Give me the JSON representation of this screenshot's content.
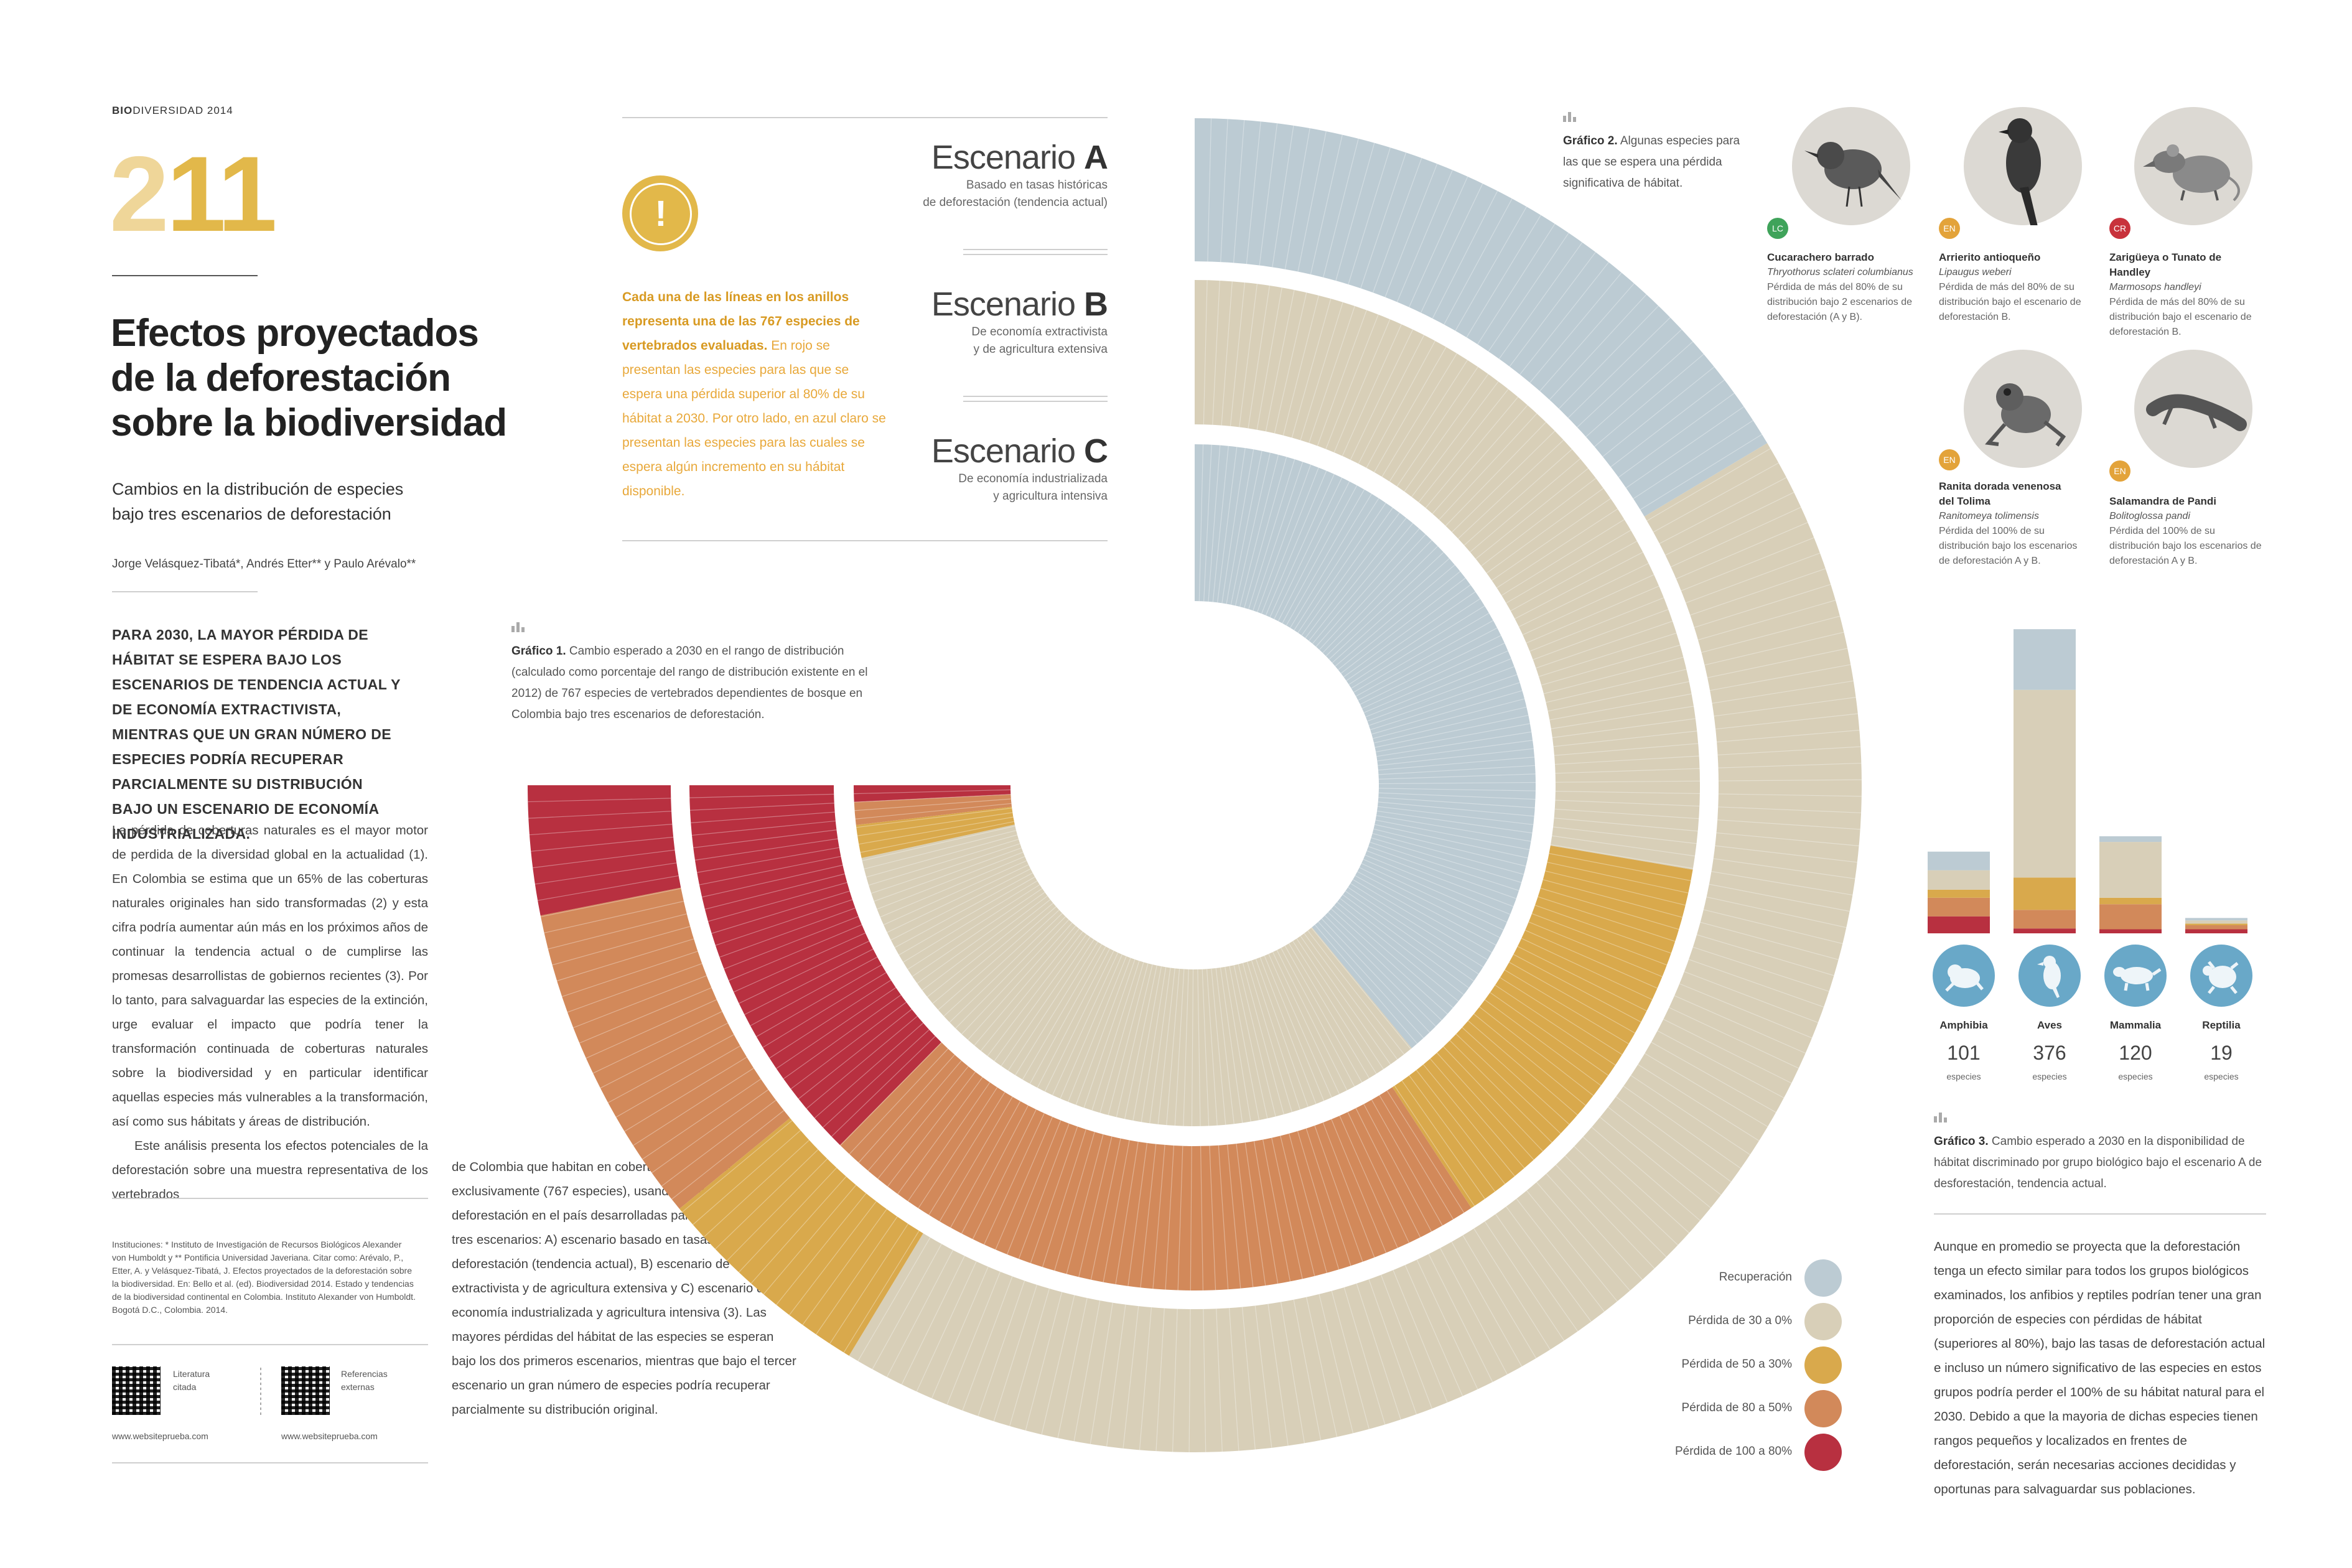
{
  "header": {
    "series_bold": "BIO",
    "series_rest": "DIVERSIDAD 2014",
    "page_number_a": "2",
    "page_number_b": "11"
  },
  "article": {
    "title_l1": "Efectos proyectados",
    "title_l2": "de la deforestación",
    "title_l3": "sobre la biodiversidad",
    "subtitle_l1": "Cambios en la distribución de especies",
    "subtitle_l2": "bajo tres escenarios de deforestación",
    "authors": "Jorge Velásquez-Tibatá*, Andrés Etter** y Paulo Arévalo**",
    "lead": "PARA 2030, LA MAYOR PÉRDIDA DE HÁBITAT SE ESPERA BAJO LOS ESCENARIOS DE TENDENCIA ACTUAL Y DE ECONOMÍA EXTRACTIVISTA, MIENTRAS QUE UN GRAN NÚMERO DE ESPECIES PODRÍA RECUPERAR PARCIALMENTE SU DISTRIBUCIÓN BAJO UN ESCENARIO DE ECONOMÍA INDUSTRIALIZADA.",
    "body_p1": "La pérdida de coberturas naturales es el mayor motor de perdida de la diversidad global en la actualidad (1). En Colombia se estima que un 65% de las coberturas naturales originales han sido transformadas (2) y esta cifra podría aumentar aún más en los próximos años de continuar la tendencia actual o de cumplirse las promesas desarrollistas de gobiernos recientes (3). Por lo tanto, para salvaguardar las especies de la extinción, urge evaluar el impacto que podría tener la transformación continuada de coberturas naturales sobre la biodiversidad y en particular identificar aquellas especies más vulnerables a la transformación, así como sus hábitats y áreas de distribución.",
    "body_p2": "Este análisis presenta los efectos potenciales de la deforestación sobre una muestra representativa de los vertebrados",
    "body_cont": "de Colombia que habitan en coberturas boscosas exclusivamente (767 especies), usando proyecciones de deforestación en el país desarrolladas para el año 2030, bajo tres escenarios: A) escenario basado en tasas históricas de deforestación (tendencia actual), B) escenario de economía extractivista y de agricultura extensiva y C) escenario de economía industrializada y agricultura intensiva (3). Las mayores pérdidas del hábitat de las especies se esperan bajo los dos primeros escenarios, mientras que bajo el tercer escenario un gran número de especies podría recuperar parcialmente su distribución original.",
    "institutions": "Instituciones: * Instituto de Investigación de Recursos Biológicos Alexander von Humboldt y ** Pontificia Universidad Javeriana. Citar como: Arévalo, P., Etter, A. y Velásquez-Tibatá, J. Efectos proyectados de la deforestación sobre la biodiversidad. En: Bello et al. (ed). Biodiversidad 2014. Estado y tendencias de la biodiversidad continental en Colombia. Instituto Alexander von Humboldt. Bogotá D.C., Colombia. 2014.",
    "qr1_label_l1": "Literatura",
    "qr1_label_l2": "citada",
    "qr2_label_l1": "Referencias",
    "qr2_label_l2": "externas",
    "qr1_url": "www.websiteprueba.com",
    "qr2_url": "www.websiteprueba.com"
  },
  "scenarios": {
    "word": "Escenario",
    "a_letter": "A",
    "a_desc_l1": "Basado en tasas históricas",
    "a_desc_l2": "de deforestación (tendencia actual)",
    "b_letter": "B",
    "b_desc_l1": "De economía extractivista",
    "b_desc_l2": "y de agricultura extensiva",
    "c_letter": "C",
    "c_desc_l1": "De economía industrializada",
    "c_desc_l2": "y agricultura intensiva"
  },
  "alert": {
    "symbol": "!",
    "bold": "Cada una de las líneas en los anillos representa una de las 767 especies de vertebrados evaluadas.",
    "rest": " En rojo se presentan las especies para las que se espera una pérdida superior al 80% de su hábitat a 2030. Por otro lado, en azul claro se presentan las especies para las cuales se espera algún incremento en su hábitat disponible."
  },
  "grafico1": {
    "label": "Gráfico 1.",
    "text": " Cambio esperado a 2030 en el rango de distribución (calculado como porcentaje del rango de distribución existente en el 2012) de 767 especies de vertebrados dependientes de bosque en Colombia bajo tres escenarios de deforestación."
  },
  "grafico2": {
    "label": "Gráfico 2.",
    "text": " Algunas especies para las que se espera una pérdida significativa de hábitat."
  },
  "grafico3": {
    "label": "Gráfico 3.",
    "text": " Cambio esperado a 2030 en la disponibilidad de hábitat discriminado por grupo biológico bajo el escenario A de desforestación, tendencia actual.",
    "body": "Aunque en promedio se proyecta que la deforestación tenga un efecto similar para todos los grupos biológicos examinados, los anfibios y reptiles podrían tener una gran proporción de especies con pérdidas de hábitat (superiores al 80%), bajo las tasas de deforestación actual e incluso un número significativo de las especies en estos grupos podría perder el 100% de su hábitat natural para el 2030. Debido a que la mayoria de dichas especies tienen rangos pequeños y localizados en frentes de deforestación, serán necesarias acciones decididas y oportunas para salvaguardar sus poblaciones."
  },
  "species": [
    {
      "status": "LC",
      "status_color": "#3fa35a",
      "name": "Cucarachero barrado",
      "sci": "Thryothorus sclateri columbianus",
      "desc": "Pérdida de más del 80% de su distribución bajo 2 escenarios de deforestación (A y B).",
      "icon": "wren-icon"
    },
    {
      "status": "EN",
      "status_color": "#e3a33a",
      "name": "Arrierito antioqueño",
      "sci": "Lipaugus weberi",
      "desc": "Pérdida de más del 80% de su distribución bajo el escenario de deforestación B.",
      "icon": "piha-icon"
    },
    {
      "status": "CR",
      "status_color": "#c8323c",
      "name": "Zarigüeya o Tunato de Handley",
      "sci": "Marmosops handleyi",
      "desc": "Pérdida de más del 80% de su distribución bajo el escenario de deforestación B.",
      "icon": "opossum-icon"
    },
    {
      "status": "EN",
      "status_color": "#e3a33a",
      "name_l1": "Ranita dorada venenosa",
      "name_l2": "del Tolima",
      "sci": "Ranitomeya tolimensis",
      "desc": "Pérdida del 100% de su distribución bajo los escenarios de deforestación A y B.",
      "icon": "frog-icon"
    },
    {
      "status": "EN",
      "status_color": "#e3a33a",
      "name": "Salamandra de Pandi",
      "sci": "Bolitoglossa pandi",
      "desc": "Pérdida del 100% de su distribución bajo los escenarios de deforestación A y B.",
      "icon": "salamander-icon"
    }
  ],
  "groups": [
    {
      "name": "Amphibia",
      "count": "101",
      "unit": "especies",
      "icon": "frog-icon"
    },
    {
      "name": "Aves",
      "count": "376",
      "unit": "especies",
      "icon": "bird-icon"
    },
    {
      "name": "Mammalia",
      "count": "120",
      "unit": "especies",
      "icon": "mammal-icon"
    },
    {
      "name": "Reptilia",
      "count": "19",
      "unit": "especies",
      "icon": "turtle-icon"
    }
  ],
  "legend": [
    {
      "label": "Recuperación",
      "color": "#bccbd3"
    },
    {
      "label": "Pérdida de 30 a 0%",
      "color": "#d8cfb8"
    },
    {
      "label": "Pérdida de 50 a 30%",
      "color": "#d9a94c"
    },
    {
      "label": "Pérdida de 80 a 50%",
      "color": "#d2895a"
    },
    {
      "label": "Pérdida de 100 a 80%",
      "color": "#b83040"
    }
  ],
  "chart_data": [
    {
      "type": "donut",
      "total_species": 767,
      "categories": [
        "Recuperación",
        "Pérdida de 30 a 0%",
        "Pérdida de 50 a 30%",
        "Pérdida de 80 a 50%",
        "Pérdida de 100 a 80%"
      ],
      "series": [
        {
          "name": "Escenario A",
          "values": [
            168,
            432,
            55,
            80,
            32
          ]
        },
        {
          "name": "Escenario B",
          "values": [
            0,
            283,
            134,
            221,
            129
          ]
        },
        {
          "name": "Escenario C",
          "values": [
            399,
            333,
            16,
            11,
            8
          ]
        }
      ]
    },
    {
      "type": "bar",
      "stacked": true,
      "categories": [
        "Amphibia",
        "Aves",
        "Mammalia",
        "Reptilia"
      ],
      "series": [
        {
          "name": "Recuperación",
          "values": [
            23,
            75,
            7,
            3
          ]
        },
        {
          "name": "Pérdida de 30 a 0%",
          "values": [
            24,
            232,
            69,
            4
          ]
        },
        {
          "name": "Pérdida de 50 a 30%",
          "values": [
            10,
            40,
            8,
            2
          ]
        },
        {
          "name": "Pérdida de 80 a 50%",
          "values": [
            23,
            23,
            31,
            5
          ]
        },
        {
          "name": "Pérdida de 100 a 80%",
          "values": [
            21,
            6,
            5,
            5
          ]
        }
      ]
    }
  ]
}
